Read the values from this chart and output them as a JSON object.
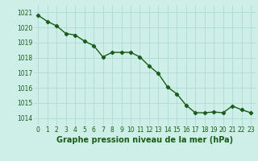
{
  "x": [
    0,
    1,
    2,
    3,
    4,
    5,
    6,
    7,
    8,
    9,
    10,
    11,
    12,
    13,
    14,
    15,
    16,
    17,
    18,
    19,
    20,
    21,
    22,
    23
  ],
  "y": [
    1020.8,
    1020.4,
    1020.1,
    1019.6,
    1019.5,
    1019.1,
    1018.8,
    1018.05,
    1018.35,
    1018.35,
    1018.35,
    1018.05,
    1017.45,
    1016.95,
    1016.05,
    1015.6,
    1014.85,
    1014.35,
    1014.35,
    1014.4,
    1014.35,
    1014.8,
    1014.55,
    1014.35
  ],
  "xlim": [
    -0.5,
    23.5
  ],
  "ylim": [
    1013.5,
    1021.5
  ],
  "yticks": [
    1014,
    1015,
    1016,
    1017,
    1018,
    1019,
    1020,
    1021
  ],
  "xticks": [
    0,
    1,
    2,
    3,
    4,
    5,
    6,
    7,
    8,
    9,
    10,
    11,
    12,
    13,
    14,
    15,
    16,
    17,
    18,
    19,
    20,
    21,
    22,
    23
  ],
  "xlabel": "Graphe pression niveau de la mer (hPa)",
  "line_color": "#1a5c1a",
  "bg_color": "#ceeee8",
  "grid_color": "#a8d8d0",
  "label_color": "#1a5c1a",
  "marker": "D",
  "marker_size": 2.2,
  "line_width": 1.0,
  "xlabel_fontsize": 7,
  "tick_fontsize": 5.5
}
